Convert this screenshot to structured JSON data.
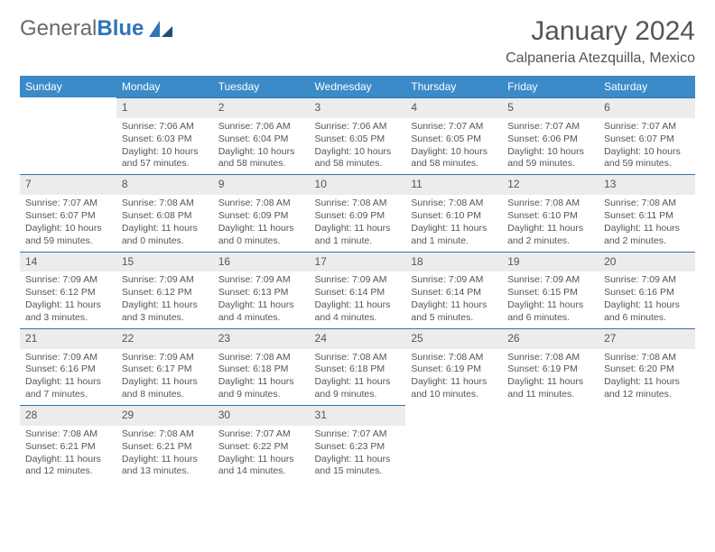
{
  "brand": {
    "word1": "General",
    "word2": "Blue"
  },
  "title": "January 2024",
  "location": "Calpaneria Atezquilla, Mexico",
  "colors": {
    "header_bg": "#3b8bc9",
    "header_text": "#ffffff",
    "daynum_bg": "#ececec",
    "rule": "#2e75b6",
    "text": "#555555",
    "logo_gray": "#6a6a6a",
    "logo_blue": "#2e75b6"
  },
  "day_headers": [
    "Sunday",
    "Monday",
    "Tuesday",
    "Wednesday",
    "Thursday",
    "Friday",
    "Saturday"
  ],
  "weeks": [
    [
      {
        "n": "",
        "sr": "",
        "ss": "",
        "dl": ""
      },
      {
        "n": "1",
        "sr": "Sunrise: 7:06 AM",
        "ss": "Sunset: 6:03 PM",
        "dl": "Daylight: 10 hours and 57 minutes."
      },
      {
        "n": "2",
        "sr": "Sunrise: 7:06 AM",
        "ss": "Sunset: 6:04 PM",
        "dl": "Daylight: 10 hours and 58 minutes."
      },
      {
        "n": "3",
        "sr": "Sunrise: 7:06 AM",
        "ss": "Sunset: 6:05 PM",
        "dl": "Daylight: 10 hours and 58 minutes."
      },
      {
        "n": "4",
        "sr": "Sunrise: 7:07 AM",
        "ss": "Sunset: 6:05 PM",
        "dl": "Daylight: 10 hours and 58 minutes."
      },
      {
        "n": "5",
        "sr": "Sunrise: 7:07 AM",
        "ss": "Sunset: 6:06 PM",
        "dl": "Daylight: 10 hours and 59 minutes."
      },
      {
        "n": "6",
        "sr": "Sunrise: 7:07 AM",
        "ss": "Sunset: 6:07 PM",
        "dl": "Daylight: 10 hours and 59 minutes."
      }
    ],
    [
      {
        "n": "7",
        "sr": "Sunrise: 7:07 AM",
        "ss": "Sunset: 6:07 PM",
        "dl": "Daylight: 10 hours and 59 minutes."
      },
      {
        "n": "8",
        "sr": "Sunrise: 7:08 AM",
        "ss": "Sunset: 6:08 PM",
        "dl": "Daylight: 11 hours and 0 minutes."
      },
      {
        "n": "9",
        "sr": "Sunrise: 7:08 AM",
        "ss": "Sunset: 6:09 PM",
        "dl": "Daylight: 11 hours and 0 minutes."
      },
      {
        "n": "10",
        "sr": "Sunrise: 7:08 AM",
        "ss": "Sunset: 6:09 PM",
        "dl": "Daylight: 11 hours and 1 minute."
      },
      {
        "n": "11",
        "sr": "Sunrise: 7:08 AM",
        "ss": "Sunset: 6:10 PM",
        "dl": "Daylight: 11 hours and 1 minute."
      },
      {
        "n": "12",
        "sr": "Sunrise: 7:08 AM",
        "ss": "Sunset: 6:10 PM",
        "dl": "Daylight: 11 hours and 2 minutes."
      },
      {
        "n": "13",
        "sr": "Sunrise: 7:08 AM",
        "ss": "Sunset: 6:11 PM",
        "dl": "Daylight: 11 hours and 2 minutes."
      }
    ],
    [
      {
        "n": "14",
        "sr": "Sunrise: 7:09 AM",
        "ss": "Sunset: 6:12 PM",
        "dl": "Daylight: 11 hours and 3 minutes."
      },
      {
        "n": "15",
        "sr": "Sunrise: 7:09 AM",
        "ss": "Sunset: 6:12 PM",
        "dl": "Daylight: 11 hours and 3 minutes."
      },
      {
        "n": "16",
        "sr": "Sunrise: 7:09 AM",
        "ss": "Sunset: 6:13 PM",
        "dl": "Daylight: 11 hours and 4 minutes."
      },
      {
        "n": "17",
        "sr": "Sunrise: 7:09 AM",
        "ss": "Sunset: 6:14 PM",
        "dl": "Daylight: 11 hours and 4 minutes."
      },
      {
        "n": "18",
        "sr": "Sunrise: 7:09 AM",
        "ss": "Sunset: 6:14 PM",
        "dl": "Daylight: 11 hours and 5 minutes."
      },
      {
        "n": "19",
        "sr": "Sunrise: 7:09 AM",
        "ss": "Sunset: 6:15 PM",
        "dl": "Daylight: 11 hours and 6 minutes."
      },
      {
        "n": "20",
        "sr": "Sunrise: 7:09 AM",
        "ss": "Sunset: 6:16 PM",
        "dl": "Daylight: 11 hours and 6 minutes."
      }
    ],
    [
      {
        "n": "21",
        "sr": "Sunrise: 7:09 AM",
        "ss": "Sunset: 6:16 PM",
        "dl": "Daylight: 11 hours and 7 minutes."
      },
      {
        "n": "22",
        "sr": "Sunrise: 7:09 AM",
        "ss": "Sunset: 6:17 PM",
        "dl": "Daylight: 11 hours and 8 minutes."
      },
      {
        "n": "23",
        "sr": "Sunrise: 7:08 AM",
        "ss": "Sunset: 6:18 PM",
        "dl": "Daylight: 11 hours and 9 minutes."
      },
      {
        "n": "24",
        "sr": "Sunrise: 7:08 AM",
        "ss": "Sunset: 6:18 PM",
        "dl": "Daylight: 11 hours and 9 minutes."
      },
      {
        "n": "25",
        "sr": "Sunrise: 7:08 AM",
        "ss": "Sunset: 6:19 PM",
        "dl": "Daylight: 11 hours and 10 minutes."
      },
      {
        "n": "26",
        "sr": "Sunrise: 7:08 AM",
        "ss": "Sunset: 6:19 PM",
        "dl": "Daylight: 11 hours and 11 minutes."
      },
      {
        "n": "27",
        "sr": "Sunrise: 7:08 AM",
        "ss": "Sunset: 6:20 PM",
        "dl": "Daylight: 11 hours and 12 minutes."
      }
    ],
    [
      {
        "n": "28",
        "sr": "Sunrise: 7:08 AM",
        "ss": "Sunset: 6:21 PM",
        "dl": "Daylight: 11 hours and 12 minutes."
      },
      {
        "n": "29",
        "sr": "Sunrise: 7:08 AM",
        "ss": "Sunset: 6:21 PM",
        "dl": "Daylight: 11 hours and 13 minutes."
      },
      {
        "n": "30",
        "sr": "Sunrise: 7:07 AM",
        "ss": "Sunset: 6:22 PM",
        "dl": "Daylight: 11 hours and 14 minutes."
      },
      {
        "n": "31",
        "sr": "Sunrise: 7:07 AM",
        "ss": "Sunset: 6:23 PM",
        "dl": "Daylight: 11 hours and 15 minutes."
      },
      {
        "n": "",
        "sr": "",
        "ss": "",
        "dl": ""
      },
      {
        "n": "",
        "sr": "",
        "ss": "",
        "dl": ""
      },
      {
        "n": "",
        "sr": "",
        "ss": "",
        "dl": ""
      }
    ]
  ]
}
